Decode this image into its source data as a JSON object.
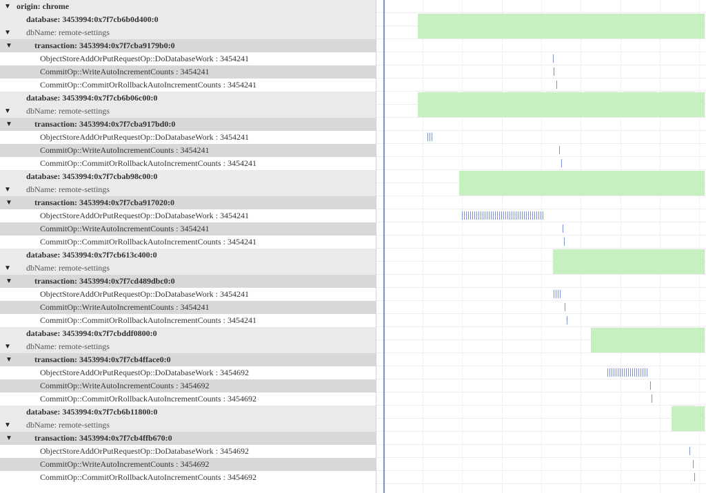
{
  "origin_label": "origin: chrome",
  "dbName_label": "dbName: remote-settings",
  "colors": {
    "bar": "#c7f0c0",
    "tick": "#7a8fd8",
    "now_line": "#7a8fd8",
    "row_alt": "#d8d8d8",
    "row_light": "#eaeaea",
    "row_white": "#ffffff",
    "grid": "#f0f0f0"
  },
  "timeline": {
    "now_line_x_pct": 2.1,
    "grid_lines_pct": [
      2.3,
      14,
      26,
      38,
      50,
      62,
      74,
      86,
      98
    ]
  },
  "groups": [
    {
      "database": "database: 3453994:0x7f7cb6b0d400:0",
      "transaction": "transaction: 3453994:0x7f7cba9179b0:0",
      "bar": {
        "left_pct": 12.5,
        "width_pct": 87
      },
      "ops": [
        {
          "label": "ObjectStoreAddOrPutRequestOp::DoDatabaseWork : 3454241",
          "ticks": {
            "left_pct": 53.5,
            "count": 1
          }
        },
        {
          "label": "CommitOp::WriteAutoIncrementCounts : 3454241",
          "ticks": {
            "left_pct": 53.8,
            "count": 1
          }
        },
        {
          "label": "CommitOp::CommitOrRollbackAutoIncrementCounts : 3454241",
          "ticks": {
            "left_pct": 54.5,
            "count": 1
          }
        }
      ]
    },
    {
      "database": "database: 3453994:0x7f7cb6b06c00:0",
      "transaction": "transaction: 3453994:0x7f7cba917bd0:0",
      "bar": {
        "left_pct": 12.5,
        "width_pct": 87
      },
      "ops": [
        {
          "label": "ObjectStoreAddOrPutRequestOp::DoDatabaseWork : 3454241",
          "ticks": {
            "left_pct": 15.5,
            "count": 3
          }
        },
        {
          "label": "CommitOp::WriteAutoIncrementCounts : 3454241",
          "ticks": {
            "left_pct": 55.5,
            "count": 1
          }
        },
        {
          "label": "CommitOp::CommitOrRollbackAutoIncrementCounts : 3454241",
          "ticks": {
            "left_pct": 56,
            "count": 1
          }
        }
      ]
    },
    {
      "database": "database: 3453994:0x7f7cbab98c00:0",
      "transaction": "transaction: 3453994:0x7f7cba917020:0",
      "bar": {
        "left_pct": 25,
        "width_pct": 74.5
      },
      "ops": [
        {
          "label": "ObjectStoreAddOrPutRequestOp::DoDatabaseWork : 3454241",
          "ticks": {
            "left_pct": 26,
            "count": 40
          }
        },
        {
          "label": "CommitOp::WriteAutoIncrementCounts : 3454241",
          "ticks": {
            "left_pct": 56.5,
            "count": 1
          }
        },
        {
          "label": "CommitOp::CommitOrRollbackAutoIncrementCounts : 3454241",
          "ticks": {
            "left_pct": 57,
            "count": 1
          }
        }
      ]
    },
    {
      "database": "database: 3453994:0x7f7cb613c400:0",
      "transaction": "transaction: 3453994:0x7f7cd489dbc0:0",
      "bar": {
        "left_pct": 53.5,
        "width_pct": 46
      },
      "ops": [
        {
          "label": "ObjectStoreAddOrPutRequestOp::DoDatabaseWork : 3454241",
          "ticks": {
            "left_pct": 53.8,
            "count": 4
          }
        },
        {
          "label": "CommitOp::WriteAutoIncrementCounts : 3454241",
          "ticks": {
            "left_pct": 57.2,
            "count": 1
          }
        },
        {
          "label": "CommitOp::CommitOrRollbackAutoIncrementCounts : 3454241",
          "ticks": {
            "left_pct": 57.7,
            "count": 1
          }
        }
      ]
    },
    {
      "database": "database: 3453994:0x7f7cbddf0800:0",
      "transaction": "transaction: 3453994:0x7f7cb4fface0:0",
      "bar": {
        "left_pct": 65,
        "width_pct": 34.5
      },
      "ops": [
        {
          "label": "ObjectStoreAddOrPutRequestOp::DoDatabaseWork : 3454692",
          "ticks": {
            "left_pct": 70,
            "count": 20
          }
        },
        {
          "label": "CommitOp::WriteAutoIncrementCounts : 3454692",
          "ticks": {
            "left_pct": 83,
            "count": 1
          }
        },
        {
          "label": "CommitOp::CommitOrRollbackAutoIncrementCounts : 3454692",
          "ticks": {
            "left_pct": 83.5,
            "count": 1
          }
        }
      ]
    },
    {
      "database": "database: 3453994:0x7f7cb6b11800:0",
      "transaction": "transaction: 3453994:0x7f7cb4ffb670:0",
      "bar": {
        "left_pct": 89.5,
        "width_pct": 10
      },
      "ops": [
        {
          "label": "ObjectStoreAddOrPutRequestOp::DoDatabaseWork : 3454692",
          "ticks": {
            "left_pct": 95,
            "count": 1
          }
        },
        {
          "label": "CommitOp::WriteAutoIncrementCounts : 3454692",
          "ticks": {
            "left_pct": 96,
            "count": 1
          }
        },
        {
          "label": "CommitOp::CommitOrRollbackAutoIncrementCounts : 3454692",
          "ticks": {
            "left_pct": 96.5,
            "count": 1
          }
        }
      ]
    }
  ]
}
